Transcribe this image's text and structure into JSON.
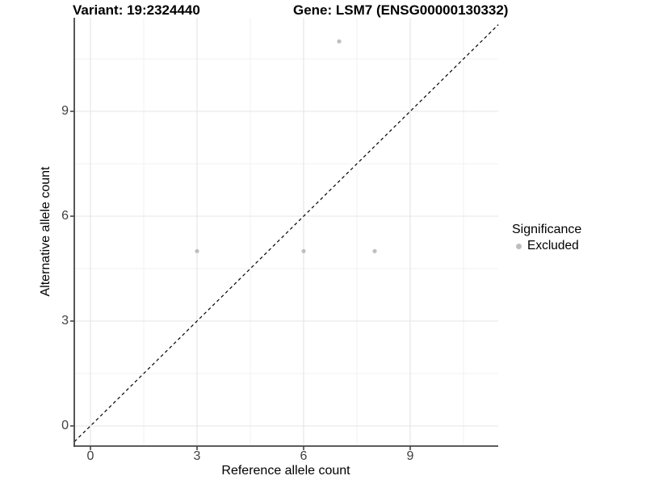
{
  "titles": {
    "variant": "Variant: 19:2324440",
    "gene": "Gene: LSM7 (ENSG00000130332)"
  },
  "chart_data": {
    "type": "scatter",
    "title": "Variant: 19:2324440   Gene: LSM7 (ENSG00000130332)",
    "xlabel": "Reference allele count",
    "ylabel": "Alternative allele count",
    "xlim": [
      -0.45,
      11.48
    ],
    "ylim": [
      -0.58,
      11.68
    ],
    "x_major_ticks": [
      0,
      3,
      6,
      9
    ],
    "y_major_ticks": [
      0,
      3,
      6,
      9
    ],
    "x_minor_gridlines": [
      1.5,
      4.5,
      7.5,
      10.5
    ],
    "y_minor_gridlines": [
      1.5,
      4.5,
      7.5,
      10.5
    ],
    "grid": "major and minor, light gray on white",
    "series": [
      {
        "name": "Excluded",
        "color": "#bebebe",
        "points": [
          [
            3,
            5
          ],
          [
            6,
            5
          ],
          [
            8,
            5
          ],
          [
            7,
            11
          ]
        ]
      }
    ],
    "reference_line": {
      "slope": 1,
      "intercept": 0,
      "style": "dashed",
      "color": "#000000"
    },
    "legend": {
      "title": "Significance",
      "position": "right",
      "items": [
        {
          "label": "Excluded",
          "color": "#bebebe"
        }
      ]
    }
  },
  "style_colors": {
    "axis_line": "#444444",
    "major_grid": "#e4e4e4",
    "minor_grid": "#f1f1f1",
    "tick_text": "#404040",
    "point": "#bebebe",
    "dashed_line": "#000000"
  }
}
